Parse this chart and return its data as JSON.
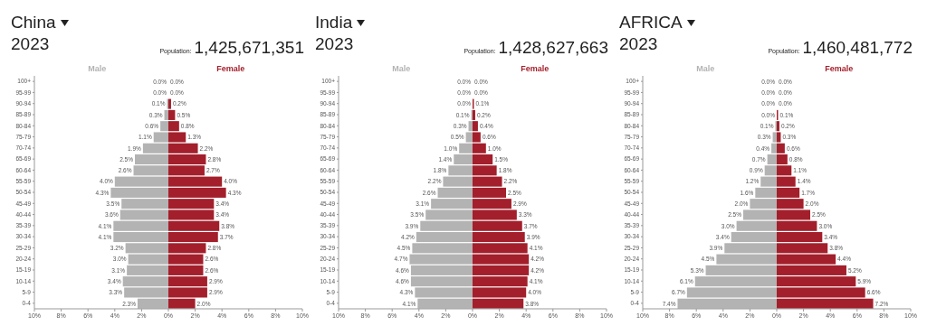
{
  "chart_data": [
    {
      "type": "bar",
      "title": "China",
      "subtitle": "2023",
      "annotations": [
        "Population:",
        "1,425,671,351"
      ],
      "orientation": "horizontal",
      "categories": [
        "100+",
        "95-99",
        "90-94",
        "85-89",
        "80-84",
        "75-79",
        "70-74",
        "65-69",
        "60-64",
        "55-59",
        "50-54",
        "45-49",
        "40-44",
        "35-39",
        "30-34",
        "25-29",
        "20-24",
        "15-19",
        "10-14",
        "5-9",
        "0-4"
      ],
      "xlim": [
        -10,
        10
      ],
      "xticks": [
        {
          "value": -10,
          "label": "10%"
        },
        {
          "value": -8,
          "label": "8%"
        },
        {
          "value": -6,
          "label": "6%"
        },
        {
          "value": -4,
          "label": "4%"
        },
        {
          "value": -2,
          "label": "2%"
        },
        {
          "value": 0,
          "label": "0%"
        },
        {
          "value": 2,
          "label": "2%"
        },
        {
          "value": 4,
          "label": "4%"
        },
        {
          "value": 6,
          "label": "6%"
        },
        {
          "value": 8,
          "label": "8%"
        },
        {
          "value": 10,
          "label": "10%"
        }
      ],
      "series": [
        {
          "name": "Male",
          "color": "#b3b3b3",
          "values": [
            0.0,
            0.0,
            0.1,
            0.3,
            0.6,
            1.1,
            1.9,
            2.5,
            2.6,
            4.0,
            4.3,
            3.5,
            3.6,
            4.1,
            4.1,
            3.2,
            3.0,
            3.1,
            3.4,
            3.3,
            2.3
          ],
          "base": [
            null,
            null,
            -0.1,
            -0.3,
            -0.6,
            -1.1,
            -1.9,
            -2.5,
            -2.6,
            -4.0,
            -4.3,
            -3.5,
            -3.6,
            -4.1,
            -4.1,
            -3.2,
            -3.0,
            -3.1,
            -3.4,
            -3.3,
            -2.3
          ],
          "value_labels": [
            "0.0%",
            "0.0%",
            "0.1%",
            "0.3%",
            "0.6%",
            "1.1%",
            "1.9%",
            "2.5%",
            "2.6%",
            "4.0%",
            "4.3%",
            "3.5%",
            "3.6%",
            "4.1%",
            "4.1%",
            "3.2%",
            "3.0%",
            "3.1%",
            "3.4%",
            "3.3%",
            "2.3%"
          ]
        },
        {
          "name": "Female",
          "color": "#a31f2b",
          "values": [
            0.0,
            0.0,
            0.2,
            0.5,
            0.8,
            1.3,
            2.2,
            2.8,
            2.7,
            4.0,
            4.3,
            3.4,
            3.4,
            3.8,
            3.7,
            2.8,
            2.6,
            2.6,
            2.9,
            2.9,
            2.0
          ],
          "value_labels": [
            "0.0%",
            "0.0%",
            "0.2%",
            "0.5%",
            "0.8%",
            "1.3%",
            "2.2%",
            "2.8%",
            "2.7%",
            "4.0%",
            "4.3%",
            "3.4%",
            "3.4%",
            "3.8%",
            "3.7%",
            "2.8%",
            "2.6%",
            "2.6%",
            "2.9%",
            "2.9%",
            "2.0%"
          ]
        }
      ]
    },
    {
      "type": "bar",
      "title": "India",
      "subtitle": "2023",
      "annotations": [
        "Population:",
        "1,428,627,663"
      ],
      "orientation": "horizontal",
      "categories": [
        "100+",
        "95-99",
        "90-94",
        "85-89",
        "80-84",
        "75-79",
        "70-74",
        "65-69",
        "60-64",
        "55-59",
        "50-54",
        "45-49",
        "40-44",
        "35-39",
        "30-34",
        "25-29",
        "20-24",
        "15-19",
        "10-14",
        "5-9",
        "0-4"
      ],
      "xlim": [
        -10,
        10
      ],
      "xticks": [
        {
          "value": -10,
          "label": "10%"
        },
        {
          "value": -8,
          "label": "8%"
        },
        {
          "value": -6,
          "label": "6%"
        },
        {
          "value": -4,
          "label": "4%"
        },
        {
          "value": -2,
          "label": "2%"
        },
        {
          "value": 0,
          "label": "0%"
        },
        {
          "value": 2,
          "label": "2%"
        },
        {
          "value": 4,
          "label": "4%"
        },
        {
          "value": 6,
          "label": "6%"
        },
        {
          "value": 8,
          "label": "8%"
        },
        {
          "value": 10,
          "label": "10%"
        }
      ],
      "series": [
        {
          "name": "Male",
          "color": "#b3b3b3",
          "values": [
            0.0,
            0.0,
            0.0,
            0.1,
            0.3,
            0.5,
            1.0,
            1.4,
            1.8,
            2.2,
            2.6,
            3.1,
            3.5,
            3.9,
            4.2,
            4.5,
            4.7,
            4.6,
            4.6,
            4.3,
            4.1
          ],
          "base": [
            null,
            null,
            null,
            -0.1,
            -0.3,
            -0.5,
            -1.0,
            -1.4,
            -1.8,
            -2.2,
            -2.6,
            -3.1,
            -3.5,
            -3.9,
            -4.2,
            -4.5,
            -4.7,
            -4.6,
            -4.6,
            -4.3,
            -4.1
          ],
          "value_labels": [
            "0.0%",
            "0.0%",
            "0.0%",
            "0.1%",
            "0.3%",
            "0.5%",
            "1.0%",
            "1.4%",
            "1.8%",
            "2.2%",
            "2.6%",
            "3.1%",
            "3.5%",
            "3.9%",
            "4.2%",
            "4.5%",
            "4.7%",
            "4.6%",
            "4.6%",
            "4.3%",
            "4.1%"
          ]
        },
        {
          "name": "Female",
          "color": "#a31f2b",
          "values": [
            0.0,
            0.0,
            0.1,
            0.2,
            0.4,
            0.6,
            1.0,
            1.5,
            1.8,
            2.2,
            2.5,
            2.9,
            3.3,
            3.7,
            3.9,
            4.1,
            4.2,
            4.2,
            4.1,
            4.0,
            3.8
          ],
          "value_labels": [
            "0.0%",
            "0.0%",
            "0.1%",
            "0.2%",
            "0.4%",
            "0.6%",
            "1.0%",
            "1.5%",
            "1.8%",
            "2.2%",
            "2.5%",
            "2.9%",
            "3.3%",
            "3.7%",
            "3.9%",
            "4.1%",
            "4.2%",
            "4.2%",
            "4.1%",
            "4.0%",
            "3.8%"
          ]
        }
      ]
    },
    {
      "type": "bar",
      "title": "AFRICA",
      "subtitle": "2023",
      "annotations": [
        "Population:",
        "1,460,481,772"
      ],
      "orientation": "horizontal",
      "categories": [
        "100+",
        "95-99",
        "90-94",
        "85-89",
        "80-84",
        "75-79",
        "70-74",
        "65-69",
        "60-64",
        "55-59",
        "50-54",
        "45-49",
        "40-44",
        "35-39",
        "30-34",
        "25-29",
        "20-24",
        "15-19",
        "10-14",
        "5-9",
        "0-4"
      ],
      "xlim": [
        -10,
        10
      ],
      "xticks": [
        {
          "value": -10,
          "label": "10%"
        },
        {
          "value": -8,
          "label": "8%"
        },
        {
          "value": -6,
          "label": "6%"
        },
        {
          "value": -4,
          "label": "4%"
        },
        {
          "value": -2,
          "label": "2%"
        },
        {
          "value": 0,
          "label": "0%"
        },
        {
          "value": 2,
          "label": "2%"
        },
        {
          "value": 4,
          "label": "4%"
        },
        {
          "value": 6,
          "label": "6%"
        },
        {
          "value": 8,
          "label": "8%"
        },
        {
          "value": 10,
          "label": "10%"
        }
      ],
      "series": [
        {
          "name": "Male",
          "color": "#b3b3b3",
          "values": [
            0.0,
            0.0,
            0.0,
            0.0,
            0.1,
            0.3,
            0.4,
            0.7,
            0.9,
            1.2,
            1.6,
            2.0,
            2.5,
            3.0,
            3.4,
            3.9,
            4.5,
            5.3,
            6.1,
            6.7,
            7.4
          ],
          "base": [
            null,
            null,
            null,
            null,
            -0.1,
            -0.3,
            -0.4,
            -0.7,
            -0.9,
            -1.2,
            -1.6,
            -2.0,
            -2.5,
            -3.0,
            -3.4,
            -3.9,
            -4.5,
            -5.3,
            -6.1,
            -6.7,
            -7.4
          ],
          "value_labels": [
            "0.0%",
            "0.0%",
            "0.0%",
            "0.0%",
            "0.1%",
            "0.3%",
            "0.4%",
            "0.7%",
            "0.9%",
            "1.2%",
            "1.6%",
            "2.0%",
            "2.5%",
            "3.0%",
            "3.4%",
            "3.9%",
            "4.5%",
            "5.3%",
            "6.1%",
            "6.7%",
            "7.4%"
          ]
        },
        {
          "name": "Female",
          "color": "#a31f2b",
          "values": [
            0.0,
            0.0,
            0.0,
            0.1,
            0.2,
            0.3,
            0.6,
            0.8,
            1.1,
            1.4,
            1.7,
            2.0,
            2.5,
            3.0,
            3.4,
            3.8,
            4.4,
            5.2,
            5.9,
            6.6,
            7.2
          ],
          "value_labels": [
            "0.0%",
            "0.0%",
            "0.0%",
            "0.1%",
            "0.2%",
            "0.3%",
            "0.6%",
            "0.8%",
            "1.1%",
            "1.4%",
            "1.7%",
            "2.0%",
            "2.5%",
            "3.0%",
            "3.4%",
            "3.8%",
            "4.4%",
            "5.2%",
            "5.9%",
            "6.6%",
            "7.2%"
          ]
        }
      ]
    }
  ]
}
